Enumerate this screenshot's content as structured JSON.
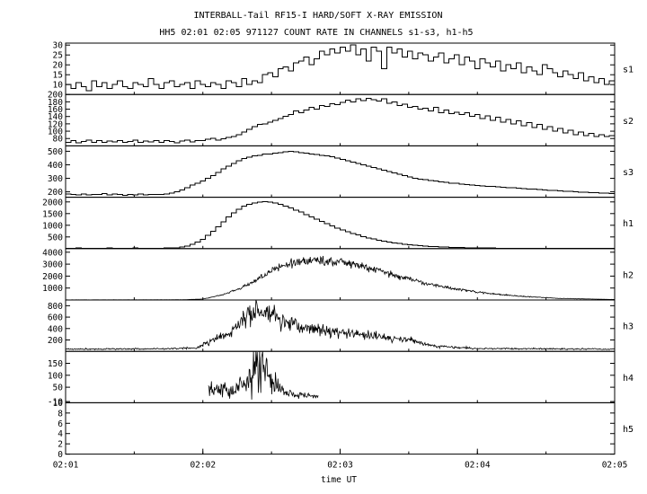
{
  "chart_data": {
    "type": "line",
    "title": "INTERBALL-Tail RF15-I HARD/SOFT X-RAY EMISSION",
    "subtitle": "HH5 02:01 02:05 971127  COUNT RATE IN CHANNELS s1-s3, h1-h5",
    "xlabel": "time UT",
    "x_ticks": [
      "02:01",
      "02:02",
      "02:03",
      "02:04",
      "02:05"
    ],
    "x_range_minutes": [
      0,
      4
    ],
    "panels": [
      {
        "name": "s1",
        "ylim": [
          5,
          31
        ],
        "y_ticks": [
          10,
          15,
          20,
          25,
          30
        ],
        "style": "step",
        "samples": [
          10,
          8,
          11,
          9,
          7,
          12,
          9,
          11,
          8,
          10,
          12,
          9,
          8,
          11,
          10,
          9,
          13,
          10,
          8,
          11,
          12,
          9,
          10,
          11,
          8,
          12,
          10,
          9,
          11,
          10,
          8,
          12,
          11,
          9,
          13,
          10,
          12,
          11,
          15,
          16,
          14,
          18,
          19,
          17,
          21,
          22,
          24,
          20,
          23,
          27,
          25,
          28,
          26,
          29,
          27,
          30,
          25,
          28,
          22,
          29,
          27,
          18,
          29,
          26,
          28,
          24,
          27,
          23,
          26,
          25,
          22,
          24,
          26,
          21,
          23,
          25,
          20,
          24,
          22,
          18,
          23,
          21,
          19,
          22,
          17,
          20,
          18,
          21,
          16,
          19,
          17,
          15,
          20,
          18,
          16,
          14,
          17,
          15,
          13,
          16,
          12,
          14,
          11,
          13,
          10,
          12
        ]
      },
      {
        "name": "s2",
        "ylim": [
          60,
          200
        ],
        "y_ticks": [
          80,
          100,
          120,
          140,
          160,
          180,
          200
        ],
        "style": "step",
        "samples": [
          70,
          75,
          68,
          72,
          76,
          70,
          74,
          69,
          73,
          71,
          75,
          70,
          72,
          76,
          69,
          73,
          71,
          74,
          70,
          75,
          72,
          68,
          73,
          76,
          71,
          74,
          75,
          78,
          80,
          76,
          79,
          83,
          85,
          90,
          98,
          105,
          112,
          118,
          120,
          125,
          130,
          135,
          140,
          145,
          155,
          150,
          158,
          165,
          160,
          170,
          168,
          175,
          172,
          178,
          185,
          180,
          188,
          183,
          190,
          186,
          182,
          188,
          176,
          180,
          170,
          174,
          165,
          168,
          160,
          162,
          155,
          165,
          150,
          158,
          148,
          152,
          145,
          150,
          140,
          146,
          135,
          142,
          130,
          138,
          125,
          132,
          120,
          128,
          115,
          124,
          110,
          118,
          105,
          112,
          100,
          108,
          95,
          102,
          90,
          98,
          88,
          94,
          85,
          90,
          86,
          88
        ]
      },
      {
        "name": "s3",
        "ylim": [
          160,
          540
        ],
        "y_ticks": [
          200,
          300,
          400,
          500
        ],
        "style": "step",
        "samples": [
          185,
          180,
          178,
          184,
          176,
          182,
          179,
          186,
          177,
          183,
          180,
          175,
          181,
          178,
          184,
          176,
          182,
          179,
          180,
          185,
          190,
          200,
          215,
          230,
          250,
          265,
          280,
          300,
          320,
          345,
          370,
          390,
          410,
          430,
          445,
          455,
          465,
          470,
          480,
          478,
          485,
          490,
          495,
          500,
          495,
          490,
          485,
          480,
          475,
          470,
          465,
          460,
          450,
          440,
          430,
          420,
          410,
          400,
          390,
          380,
          370,
          360,
          350,
          340,
          330,
          320,
          310,
          300,
          295,
          290,
          285,
          280,
          275,
          270,
          265,
          262,
          258,
          255,
          250,
          248,
          245,
          242,
          240,
          238,
          235,
          232,
          230,
          228,
          225,
          222,
          220,
          218,
          215,
          212,
          210,
          208,
          205,
          203,
          200,
          198,
          196,
          195,
          193,
          192,
          190,
          188
        ]
      },
      {
        "name": "h1",
        "ylim": [
          0,
          2200
        ],
        "y_ticks": [
          500,
          1000,
          1500,
          2000
        ],
        "style": "step",
        "samples": [
          20,
          18,
          22,
          20,
          19,
          21,
          18,
          20,
          22,
          19,
          21,
          20,
          18,
          22,
          19,
          20,
          21,
          18,
          20,
          22,
          25,
          35,
          60,
          110,
          180,
          280,
          400,
          560,
          740,
          940,
          1150,
          1350,
          1530,
          1690,
          1810,
          1900,
          1960,
          2000,
          2010,
          1990,
          1950,
          1890,
          1820,
          1740,
          1650,
          1560,
          1460,
          1360,
          1260,
          1160,
          1060,
          970,
          880,
          800,
          720,
          650,
          580,
          520,
          460,
          410,
          360,
          320,
          280,
          250,
          220,
          190,
          165,
          145,
          125,
          110,
          95,
          82,
          72,
          62,
          54,
          48,
          42,
          37,
          33,
          30,
          27,
          25,
          23,
          21,
          20,
          19,
          18,
          17,
          16,
          16,
          15,
          15,
          14,
          14,
          14,
          13,
          13,
          13,
          12,
          12,
          12,
          12,
          11,
          11,
          11,
          11
        ]
      },
      {
        "name": "h2",
        "ylim": [
          0,
          4300
        ],
        "y_ticks": [
          1000,
          2000,
          3000,
          4000
        ],
        "style": "noisy",
        "envelope_t": [
          0,
          0.85,
          1.0,
          1.15,
          1.3,
          1.45,
          1.55,
          1.65,
          1.8,
          2.0,
          2.2,
          2.45,
          2.7,
          3.0,
          3.3,
          3.6,
          4.0
        ],
        "envelope_v": [
          10,
          20,
          80,
          450,
          1100,
          2100,
          2700,
          3100,
          3350,
          3200,
          2700,
          1900,
          1200,
          650,
          320,
          130,
          40
        ],
        "noise": 0.06
      },
      {
        "name": "h3",
        "ylim": [
          0,
          900
        ],
        "y_ticks": [
          200,
          400,
          600,
          800
        ],
        "style": "noisy",
        "envelope_t": [
          0,
          0.7,
          0.95,
          1.0,
          1.1,
          1.2,
          1.3,
          1.45,
          1.55,
          1.7,
          1.9,
          2.2,
          2.5,
          2.7,
          3.0,
          4.0
        ],
        "envelope_v": [
          40,
          45,
          60,
          110,
          230,
          300,
          600,
          690,
          540,
          440,
          360,
          280,
          200,
          90,
          50,
          40
        ],
        "noise": 0.15
      },
      {
        "name": "h4",
        "ylim": [
          -15,
          200
        ],
        "y_ticks": [
          -10,
          50,
          100,
          150
        ],
        "style": "burst",
        "t_start": 1.04,
        "t_end": 1.84,
        "envelope_t": [
          1.04,
          1.15,
          1.2,
          1.3,
          1.35,
          1.42,
          1.46,
          1.5,
          1.55,
          1.6,
          1.7,
          1.84
        ],
        "envelope_v": [
          35,
          40,
          30,
          60,
          110,
          145,
          120,
          80,
          45,
          25,
          18,
          12
        ],
        "noise": 0.45
      },
      {
        "name": "h5",
        "ylim": [
          0,
          10
        ],
        "y_ticks": [
          0,
          2,
          4,
          6,
          8,
          10
        ],
        "style": "empty"
      }
    ]
  }
}
